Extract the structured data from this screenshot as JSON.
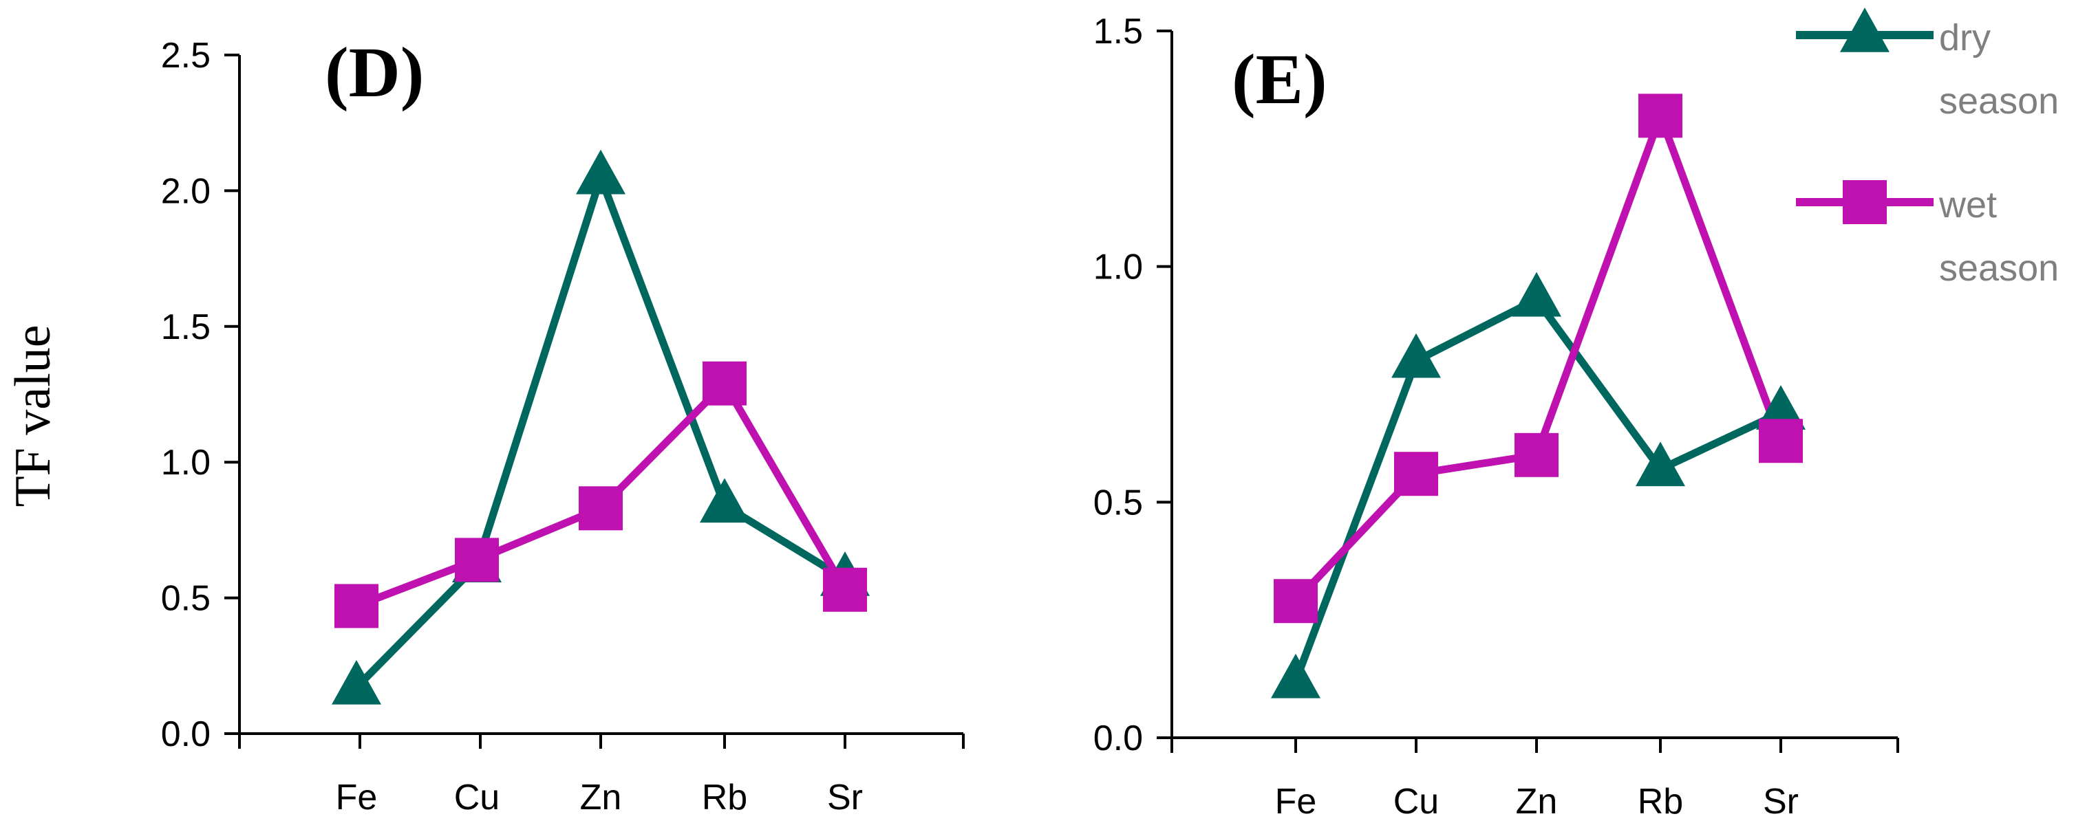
{
  "y_axis_label": "TF value",
  "colors": {
    "dry": "#00675f",
    "wet": "#bf10b0"
  },
  "legend": [
    {
      "key": "dry",
      "lines": [
        "dry",
        "season"
      ],
      "marker": "triangle"
    },
    {
      "key": "wet",
      "lines": [
        "wet",
        "season"
      ],
      "marker": "square"
    }
  ],
  "chart_data": [
    {
      "type": "line",
      "panel_label": "(D)",
      "categories": [
        "Fe",
        "Cu",
        "Zn",
        "Rb",
        "Sr"
      ],
      "ylim": [
        0,
        2.5
      ],
      "yticks": [
        "0.0",
        "0.5",
        "1.0",
        "1.5",
        "2.0",
        "2.5"
      ],
      "series": [
        {
          "name": "dry season",
          "key": "dry",
          "values": [
            0.17,
            0.62,
            2.05,
            0.84,
            0.57
          ]
        },
        {
          "name": "wet season",
          "key": "wet",
          "values": [
            0.47,
            0.64,
            0.83,
            1.29,
            0.53
          ]
        }
      ]
    },
    {
      "type": "line",
      "panel_label": "(E)",
      "categories": [
        "Fe",
        "Cu",
        "Zn",
        "Rb",
        "Sr"
      ],
      "ylim": [
        0,
        1.5
      ],
      "yticks": [
        "0.0",
        "0.5",
        "1.0",
        "1.5"
      ],
      "series": [
        {
          "name": "dry season",
          "key": "dry",
          "values": [
            0.12,
            0.8,
            0.93,
            0.57,
            0.69
          ]
        },
        {
          "name": "wet season",
          "key": "wet",
          "values": [
            0.29,
            0.56,
            0.6,
            1.32,
            0.63
          ]
        }
      ]
    }
  ]
}
